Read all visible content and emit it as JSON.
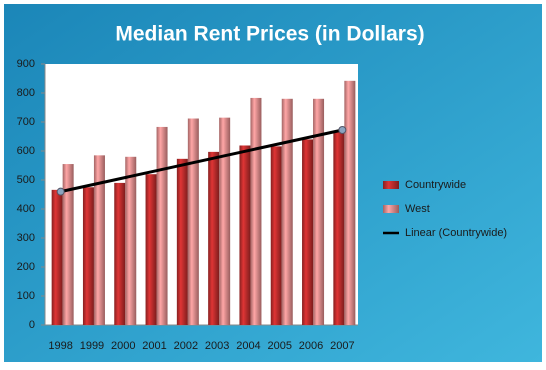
{
  "chart_data": {
    "type": "bar",
    "title": "Median Rent Prices (in Dollars)",
    "categories": [
      "1998",
      "1999",
      "2000",
      "2001",
      "2002",
      "2003",
      "2004",
      "2005",
      "2006",
      "2007"
    ],
    "series": [
      {
        "name": "Countrywide",
        "color": "#b22a2a",
        "values": [
          466,
          475,
          490,
          520,
          573,
          597,
          619,
          616,
          640,
          665
        ]
      },
      {
        "name": "West",
        "color": "#d98585",
        "values": [
          555,
          585,
          580,
          683,
          712,
          715,
          783,
          780,
          780,
          842
        ]
      }
    ],
    "trendline": {
      "name": "Linear (Countrywide)",
      "type": "linear",
      "color": "#000000"
    },
    "ylim": [
      0,
      900
    ],
    "yticks": [
      0,
      100,
      200,
      300,
      400,
      500,
      600,
      700,
      800,
      900
    ],
    "grid": false,
    "legend": "right"
  }
}
